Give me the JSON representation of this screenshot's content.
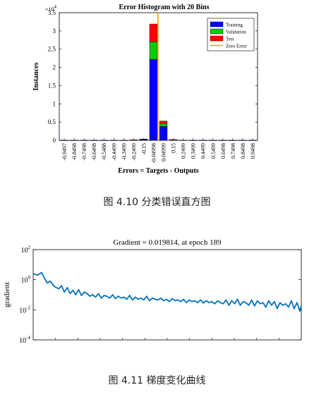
{
  "captions": {
    "fig1": "图 4.10    分类错误直方图",
    "fig2": "图 4.11    梯度变化曲线"
  },
  "chart_data": [
    {
      "type": "bar",
      "title": "Error Histogram with 20 Bins",
      "xlabel": "Errors = Targets - Outputs",
      "ylabel": "Instances",
      "y_exponent_label": "×10",
      "y_exponent": "4",
      "ylim": [
        0,
        35000
      ],
      "y_ticks": [
        0,
        5000,
        10000,
        15000,
        20000,
        25000,
        30000,
        35000
      ],
      "y_tick_labels": [
        "0",
        "0.5",
        "1",
        "1.5",
        "2",
        "2.5",
        "3",
        "3.5"
      ],
      "categories": [
        "-0.9497",
        "-0.8498",
        "-0.7498",
        "-0.6498",
        "-0.5488",
        "-0.4499",
        "-0.3499",
        "-0.2499",
        "-0.15",
        "-0.04998",
        "0.04999",
        "0.15",
        "0.2499",
        "0.3499",
        "0.4499",
        "0.5499",
        "0.6498",
        "0.7498",
        "0.8498",
        "0.9498"
      ],
      "stacked": true,
      "series": [
        {
          "name": "Training",
          "color": "#0000ff",
          "values": [
            20,
            20,
            20,
            20,
            20,
            20,
            20,
            80,
            250,
            22200,
            3800,
            150,
            40,
            20,
            20,
            20,
            20,
            20,
            20,
            20
          ]
        },
        {
          "name": "Validation",
          "color": "#00cc00",
          "values": [
            0,
            0,
            0,
            0,
            0,
            0,
            0,
            20,
            50,
            4800,
            800,
            30,
            10,
            0,
            0,
            0,
            0,
            0,
            0,
            0
          ]
        },
        {
          "name": "Test",
          "color": "#ff0000",
          "values": [
            0,
            0,
            0,
            0,
            0,
            0,
            0,
            20,
            50,
            4900,
            700,
            30,
            10,
            0,
            0,
            0,
            0,
            0,
            0,
            0
          ]
        }
      ],
      "zero_error": {
        "name": "Zero Error",
        "color": "#ff9900",
        "x": 0
      },
      "legend_position": "top-right"
    },
    {
      "type": "line",
      "title": "Gradient = 0.019814, at epoch 189",
      "ylabel": "gradient",
      "y_scale": "log",
      "ylim": [
        0.0001,
        100
      ],
      "y_tick_labels": [
        {
          "base": "10",
          "exp": "2",
          "value": 100
        },
        {
          "base": "10",
          "exp": "0",
          "value": 1
        },
        {
          "base": "10",
          "exp": "-2",
          "value": 0.01
        },
        {
          "base": "10",
          "exp": "-4",
          "value": 0.0001
        }
      ],
      "xlim": [
        0,
        189
      ],
      "line_color": "#0072bd",
      "series": [
        {
          "x": [
            0,
            3,
            6,
            8,
            10,
            12,
            15,
            18,
            20,
            22,
            24,
            26,
            28,
            30,
            32,
            34,
            36,
            38,
            40,
            42,
            44,
            46,
            48,
            50,
            52,
            54,
            56,
            58,
            60,
            62,
            64,
            66,
            68,
            70,
            72,
            74,
            76,
            78,
            80,
            82,
            84,
            86,
            88,
            90,
            92,
            94,
            96,
            98,
            100,
            102,
            104,
            106,
            108,
            110,
            112,
            114,
            116,
            118,
            120,
            122,
            124,
            126,
            128,
            130,
            132,
            134,
            136,
            138,
            140,
            142,
            144,
            146,
            148,
            150,
            152,
            154,
            156,
            158,
            160,
            162,
            164,
            166,
            168,
            170,
            172,
            174,
            176,
            178,
            180,
            182,
            184,
            186,
            188,
            189
          ],
          "y": [
            2.5,
            2.0,
            3.0,
            1.2,
            0.6,
            0.8,
            0.35,
            0.25,
            0.4,
            0.15,
            0.3,
            0.12,
            0.2,
            0.1,
            0.22,
            0.09,
            0.15,
            0.12,
            0.08,
            0.1,
            0.07,
            0.12,
            0.06,
            0.09,
            0.08,
            0.06,
            0.1,
            0.055,
            0.08,
            0.06,
            0.07,
            0.05,
            0.09,
            0.045,
            0.07,
            0.05,
            0.06,
            0.045,
            0.08,
            0.04,
            0.06,
            0.05,
            0.045,
            0.06,
            0.04,
            0.05,
            0.035,
            0.055,
            0.04,
            0.045,
            0.035,
            0.05,
            0.03,
            0.045,
            0.035,
            0.04,
            0.03,
            0.045,
            0.028,
            0.04,
            0.03,
            0.035,
            0.025,
            0.04,
            0.03,
            0.025,
            0.045,
            0.02,
            0.04,
            0.025,
            0.05,
            0.02,
            0.035,
            0.03,
            0.02,
            0.045,
            0.018,
            0.04,
            0.025,
            0.03,
            0.015,
            0.04,
            0.02,
            0.035,
            0.012,
            0.03,
            0.02,
            0.025,
            0.015,
            0.04,
            0.012,
            0.03,
            0.008,
            0.0198
          ]
        }
      ]
    }
  ]
}
